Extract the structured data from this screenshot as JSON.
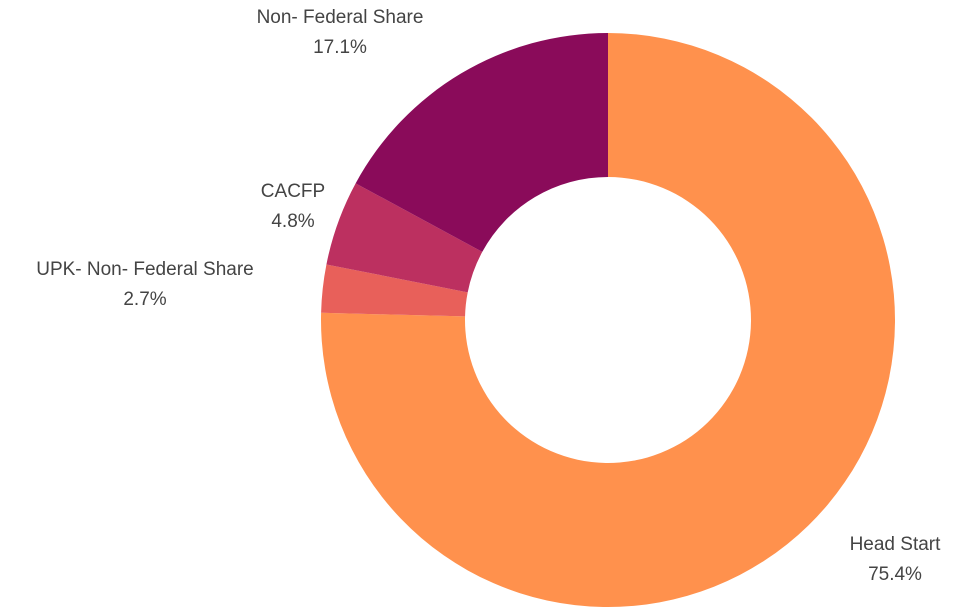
{
  "chart_data": {
    "type": "donut",
    "categories": [
      "Head Start",
      "UPK- Non- Federal Share",
      "CACFP",
      "Non- Federal Share"
    ],
    "values": [
      75.4,
      2.7,
      4.8,
      17.1
    ],
    "value_labels": [
      "75.4%",
      "2.7%",
      "4.8%",
      "17.1%"
    ],
    "colors": [
      "#ff914d",
      "#e8605a",
      "#bc3060",
      "#8a0b5a"
    ]
  }
}
